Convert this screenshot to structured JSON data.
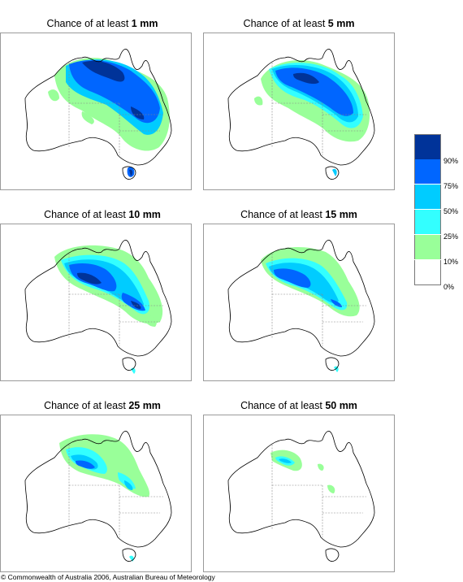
{
  "panels": [
    {
      "prefix": "Chance of at least ",
      "amount": "1 mm"
    },
    {
      "prefix": "Chance of at least ",
      "amount": "5 mm"
    },
    {
      "prefix": "Chance of at least ",
      "amount": "10 mm"
    },
    {
      "prefix": "Chance of at least ",
      "amount": "15 mm"
    },
    {
      "prefix": "Chance of at least ",
      "amount": "25 mm"
    },
    {
      "prefix": "Chance of at least ",
      "amount": "50 mm"
    }
  ],
  "legend": {
    "colors": [
      "#003399",
      "#0066ff",
      "#00ccff",
      "#33ffff",
      "#99ff99",
      "#ffffff"
    ],
    "labels": [
      "90%",
      "75%",
      "50%",
      "25%",
      "10%",
      "0%"
    ]
  },
  "copyright": "© Commonwealth of Australia 2006, Australian Bureau of Meteorology",
  "map_colors": {
    "light_green": "#99ff99",
    "cyan": "#33ffff",
    "sky": "#00ccff",
    "blue": "#0066ff",
    "navy": "#003399",
    "outline": "#000000",
    "border": "#888888"
  }
}
